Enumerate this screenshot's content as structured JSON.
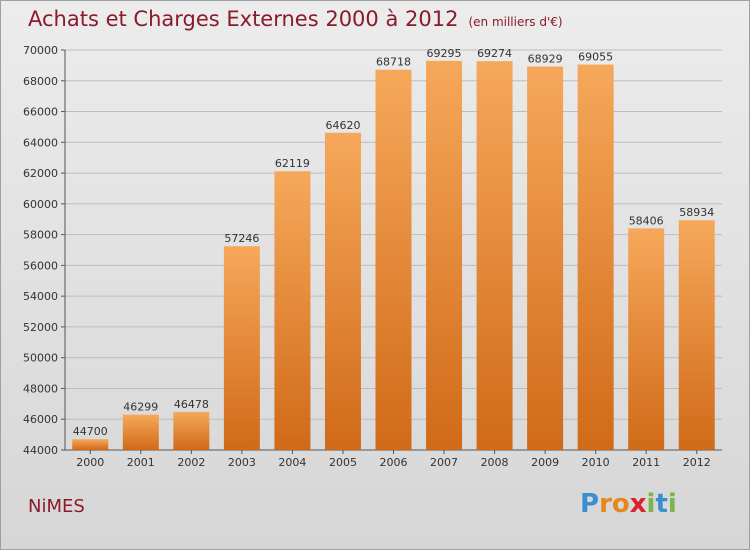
{
  "title": "Achats et Charges Externes 2000 à 2012",
  "subtitle": "(en milliers d'€)",
  "city": "NiMES",
  "logo": {
    "letters": [
      "P",
      "r",
      "o",
      "x",
      "i",
      "t",
      "i"
    ],
    "colors": [
      "#3a8fd0",
      "#e8861e",
      "#e8861e",
      "#d8232a",
      "#7ab648",
      "#3a8fd0",
      "#7ab648"
    ]
  },
  "colors": {
    "bar_top": "#f6a85a",
    "bar_bottom": "#d06a18",
    "title": "#8b1a2a",
    "grid": "#bdbdbd"
  },
  "chart_data": {
    "type": "bar",
    "categories": [
      "2000",
      "2001",
      "2002",
      "2003",
      "2004",
      "2005",
      "2006",
      "2007",
      "2008",
      "2009",
      "2010",
      "2011",
      "2012"
    ],
    "values": [
      44700,
      46299,
      46478,
      57246,
      62119,
      64620,
      68718,
      69295,
      69274,
      68929,
      69055,
      58406,
      58934
    ],
    "ylim": [
      44000,
      70000
    ],
    "yticks": [
      44000,
      46000,
      48000,
      50000,
      52000,
      54000,
      56000,
      58000,
      60000,
      62000,
      64000,
      66000,
      68000,
      70000
    ],
    "grid": true,
    "data_labels": true
  }
}
